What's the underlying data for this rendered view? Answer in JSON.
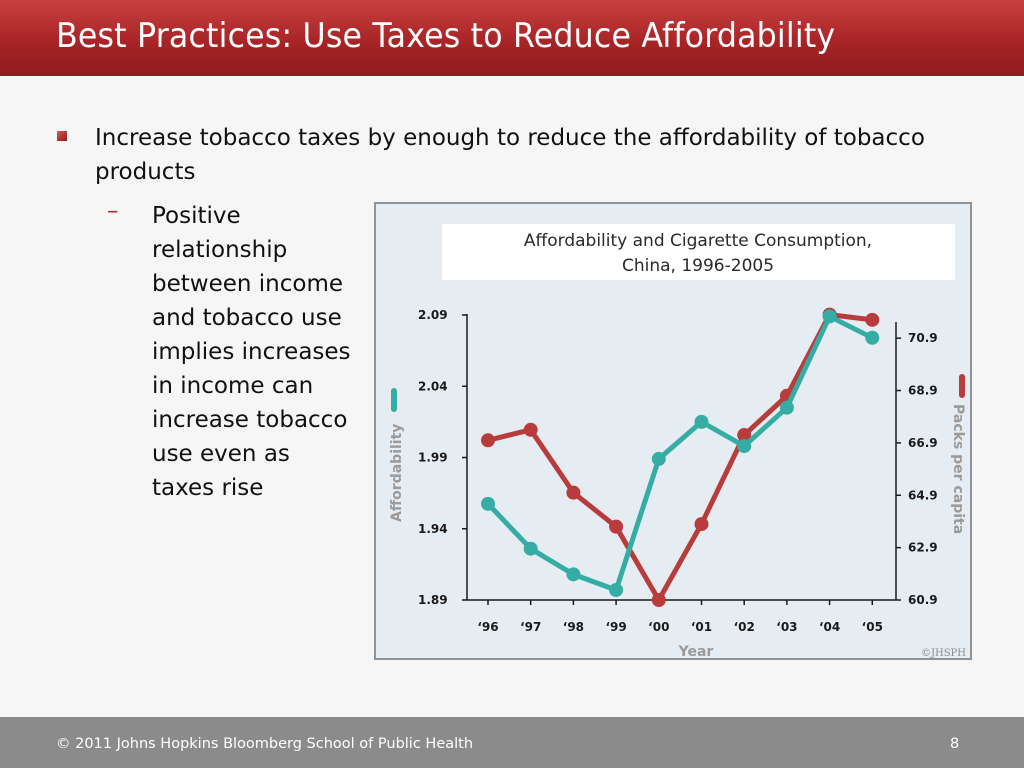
{
  "slide": {
    "title": "Best Practices: Use Taxes to Reduce Affordability",
    "bullet": "Increase tobacco taxes by enough to reduce the affordability of tobacco products",
    "sub_bullet_marker": "–",
    "sub_bullet_lines": [
      "Positive",
      "relationship",
      "between income",
      "and tobacco use",
      "implies increases",
      "in income can",
      "increase tobacco",
      "use even as",
      "taxes rise"
    ],
    "footer": "© 2011 Johns Hopkins Bloomberg School of Public Health",
    "page_number": "8",
    "colors": {
      "title_bar": "#a82426",
      "footer_bar": "#8b8b8b"
    }
  },
  "chart_data": {
    "type": "line",
    "title_lines": [
      "Affordability and Cigarette Consumption,",
      "China, 1996-2005"
    ],
    "xlabel": "Year",
    "ylabel_left": "Affordability",
    "ylabel_right": "Packs per capita",
    "categories": [
      "‘96",
      "‘97",
      "‘98",
      "‘99",
      "‘00",
      "‘01",
      "‘02",
      "‘03",
      "‘04",
      "‘05"
    ],
    "left_axis": {
      "ticks": [
        "2.09",
        "2.04",
        "1.99",
        "1.94",
        "1.89"
      ],
      "ylim": [
        1.89,
        2.09
      ]
    },
    "right_axis": {
      "ticks": [
        "70.9",
        "68.9",
        "66.9",
        "64.9",
        "62.9",
        "60.9"
      ],
      "ylim": [
        60.9,
        71.8
      ]
    },
    "series": [
      {
        "name": "Affordability",
        "axis": "left",
        "color": "#35aca4",
        "values": [
          1.9575,
          1.926,
          1.908,
          1.897,
          1.989,
          2.015,
          1.998,
          2.025,
          2.089,
          2.074
        ]
      },
      {
        "name": "Packs per capita",
        "axis": "right",
        "color": "#b83c3c",
        "values": [
          67.0,
          67.4,
          65.0,
          63.7,
          60.9,
          63.8,
          67.2,
          68.7,
          71.8,
          71.6
        ]
      }
    ],
    "legend": "axis-side color bars",
    "credit": "©JHSPH",
    "colors": {
      "background": "#e5edf3",
      "title_box": "#ffffff",
      "axis": "#1a1a1a",
      "axis_title": "#9a9a9a"
    }
  }
}
